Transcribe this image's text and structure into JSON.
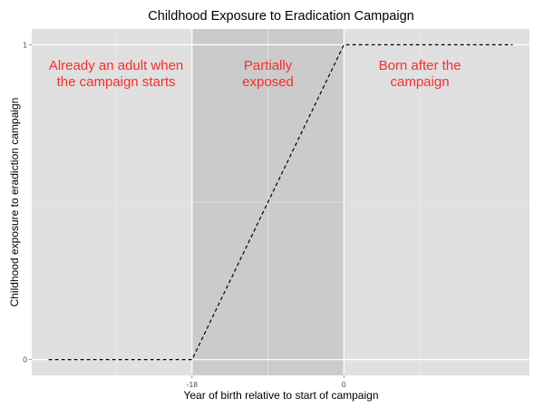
{
  "chart_data": {
    "type": "line",
    "title": "Childhood Exposure to Eradication Campaign",
    "xlabel": "Year of birth relative to start of campaign",
    "ylabel": "Childhood exposure to eradiction campaign",
    "xlim": [
      -37,
      22
    ],
    "ylim": [
      -0.05,
      1.05
    ],
    "x_ticks": [
      -18,
      0
    ],
    "x_tick_labels": [
      "-18",
      "0"
    ],
    "y_ticks": [
      0,
      1
    ],
    "y_tick_labels": [
      "0",
      "1"
    ],
    "grid": true,
    "series": [
      {
        "x": [
          -35,
          -18,
          0,
          20
        ],
        "y": [
          0,
          0,
          1,
          1
        ],
        "line_style": "dashed",
        "color": "#000000"
      }
    ],
    "shaded_region": {
      "x": [
        -18,
        0
      ],
      "color": "#cbcbcb"
    },
    "annotations": [
      {
        "lines": [
          "Already an adult when",
          "the campaign starts"
        ],
        "x": -27,
        "y": 0.92,
        "color": "#ff2a2a"
      },
      {
        "lines": [
          "Partially",
          "exposed"
        ],
        "x": -9,
        "y": 0.92,
        "color": "#ff2a2a"
      },
      {
        "lines": [
          "Born after the",
          "campaign"
        ],
        "x": 9,
        "y": 0.92,
        "color": "#ff2a2a"
      }
    ]
  },
  "colors": {
    "panel_background": "#e0e0e0",
    "grid_major": "#ffffff",
    "grid_minor": "#ebebeb",
    "shade": "#cbcbcb",
    "line": "#000000",
    "annotation": "#ff2a2a",
    "tick_text": "#4d4d4d"
  }
}
